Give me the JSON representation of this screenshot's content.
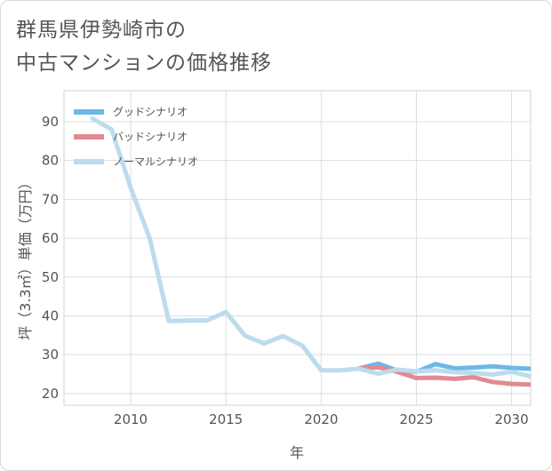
{
  "page": {
    "title_line1": "群馬県伊勢崎市の",
    "title_line2": "中古マンションの価格推移"
  },
  "chart_data": {
    "type": "line",
    "title": "群馬県伊勢崎市の中古マンションの価格推移",
    "xlabel": "年",
    "ylabel": "坪（3.3㎡）単価（万円）",
    "xlim": [
      2006.5,
      2031
    ],
    "ylim": [
      17,
      98
    ],
    "x_ticks": [
      2010,
      2015,
      2020,
      2025,
      2030
    ],
    "y_ticks": [
      20,
      30,
      40,
      50,
      60,
      70,
      80,
      90
    ],
    "grid": true,
    "legend_position": "top-left",
    "series": [
      {
        "name": "グッドシナリオ",
        "color": "#6cb8e6",
        "x": [
          2022,
          2023,
          2024,
          2025,
          2026,
          2027,
          2028,
          2029,
          2030,
          2031
        ],
        "values": [
          26.5,
          27.7,
          25.9,
          25.6,
          27.6,
          26.5,
          26.7,
          27.0,
          26.6,
          26.4
        ]
      },
      {
        "name": "バッドシナリオ",
        "color": "#e08a91",
        "x": [
          2022,
          2023,
          2024,
          2025,
          2026,
          2027,
          2028,
          2029,
          2030,
          2031
        ],
        "values": [
          26.5,
          26.8,
          25.6,
          24.0,
          24.1,
          23.8,
          24.2,
          23.0,
          22.5,
          22.3
        ]
      },
      {
        "name": "ノーマルシナリオ",
        "color": "#bcdcee",
        "x": [
          2008,
          2009,
          2010,
          2011,
          2012,
          2013,
          2014,
          2015,
          2016,
          2017,
          2018,
          2019,
          2020,
          2021,
          2022,
          2023,
          2024,
          2025,
          2026,
          2027,
          2028,
          2029,
          2030,
          2031
        ],
        "values": [
          90.8,
          88.0,
          73.0,
          60.0,
          38.7,
          38.8,
          38.8,
          41.0,
          34.9,
          32.9,
          34.8,
          32.4,
          26.0,
          26.0,
          26.4,
          25.1,
          26.2,
          25.7,
          26.0,
          25.5,
          25.3,
          24.9,
          25.6,
          24.4
        ]
      }
    ]
  }
}
